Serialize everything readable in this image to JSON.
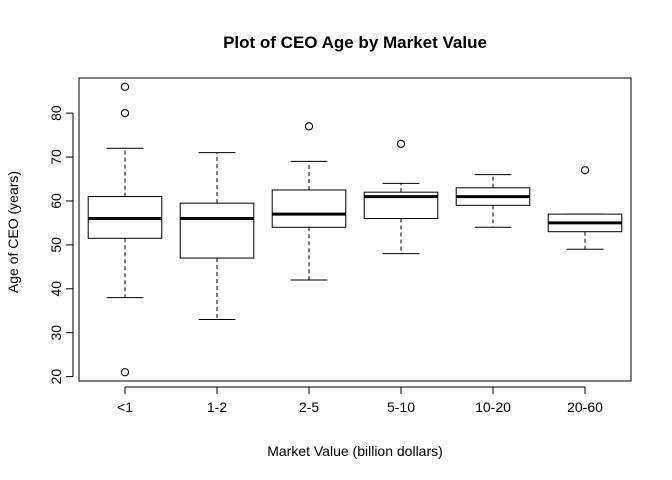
{
  "chart_data": {
    "type": "boxplot",
    "title": "Plot of CEO Age by Market Value",
    "xlabel": "Market Value (billion dollars)",
    "ylabel": "Age of CEO (years)",
    "ylim": [
      19,
      88
    ],
    "yticks": [
      20,
      30,
      40,
      50,
      60,
      70,
      80
    ],
    "grid": false,
    "legend": "none",
    "categories": [
      "<1",
      "1-2",
      "2-5",
      "5-10",
      "10-20",
      "20-60"
    ],
    "boxes": [
      {
        "category": "<1",
        "whisker_low": 38,
        "q1": 51.5,
        "median": 56,
        "q3": 61,
        "whisker_high": 72,
        "outliers": [
          21,
          80,
          86
        ]
      },
      {
        "category": "1-2",
        "whisker_low": 33,
        "q1": 47,
        "median": 56,
        "q3": 59.5,
        "whisker_high": 71,
        "outliers": []
      },
      {
        "category": "2-5",
        "whisker_low": 42,
        "q1": 54,
        "median": 57,
        "q3": 62.5,
        "whisker_high": 69,
        "outliers": [
          77
        ]
      },
      {
        "category": "5-10",
        "whisker_low": 48,
        "q1": 56,
        "median": 61,
        "q3": 62,
        "whisker_high": 64,
        "outliers": [
          73
        ]
      },
      {
        "category": "10-20",
        "whisker_low": 54,
        "q1": 59,
        "median": 61,
        "q3": 63,
        "whisker_high": 66,
        "outliers": []
      },
      {
        "category": "20-60",
        "whisker_low": 49,
        "q1": 53,
        "median": 55,
        "q3": 57,
        "whisker_high": 57,
        "outliers": [
          67
        ]
      }
    ]
  }
}
